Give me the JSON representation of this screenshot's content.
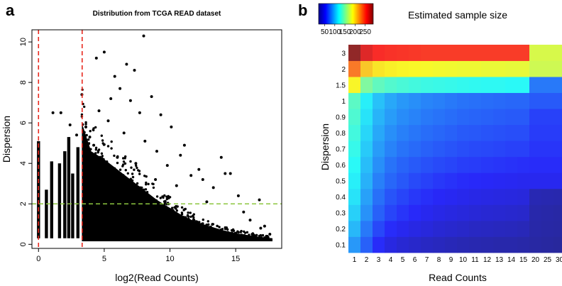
{
  "chart_data": [
    {
      "panel": "a",
      "type": "scatter",
      "title": "Distribution from TCGA READ dataset",
      "xlabel": "log2(Read Counts)",
      "ylabel": "Dispersion",
      "xlim": [
        -0.5,
        18.5
      ],
      "ylim": [
        -0.2,
        10.6
      ],
      "xticks": [
        0,
        5,
        10,
        15
      ],
      "yticks": [
        0,
        2,
        4,
        6,
        8,
        10
      ],
      "vlines": [
        {
          "x": 0,
          "color": "#e8281e",
          "style": "dashed"
        },
        {
          "x": 3.32,
          "color": "#e8281e",
          "style": "dashed"
        }
      ],
      "hlines": [
        {
          "y": 2,
          "color": "#8cc63f",
          "style": "dashed"
        }
      ],
      "point_color": "#000000",
      "points": [
        [
          8.0,
          10.3
        ],
        [
          6.7,
          8.9
        ],
        [
          7.3,
          8.6
        ],
        [
          5.8,
          8.3
        ],
        [
          5.0,
          9.5
        ],
        [
          4.4,
          9.2
        ],
        [
          6.2,
          7.7
        ],
        [
          3.3,
          7.4
        ],
        [
          5.5,
          7.2
        ],
        [
          7.0,
          7.1
        ],
        [
          8.6,
          7.3
        ],
        [
          9.3,
          6.4
        ],
        [
          4.6,
          6.6
        ],
        [
          7.7,
          6.5
        ],
        [
          10.1,
          5.8
        ],
        [
          11.1,
          4.9
        ],
        [
          8.1,
          5.1
        ],
        [
          10.8,
          4.4
        ],
        [
          13.9,
          4.3
        ],
        [
          12.2,
          3.7
        ],
        [
          14.2,
          3.5
        ],
        [
          14.6,
          3.5
        ],
        [
          12.5,
          3.2
        ],
        [
          16.8,
          2.2
        ],
        [
          1.7,
          6.5
        ],
        [
          1.1,
          6.5
        ],
        [
          2.4,
          5.9
        ],
        [
          2.9,
          5.4
        ],
        [
          3.6,
          5.8
        ],
        [
          5.3,
          6.1
        ],
        [
          6.5,
          5.5
        ],
        [
          9.0,
          4.6
        ],
        [
          9.8,
          3.9
        ],
        [
          11.6,
          3.4
        ],
        [
          13.3,
          2.8
        ],
        [
          15.2,
          2.4
        ],
        [
          15.6,
          1.6
        ],
        [
          16.1,
          1.2
        ],
        [
          17.2,
          0.9
        ],
        [
          17.6,
          0.5
        ],
        [
          16.9,
          0.8
        ],
        [
          12.8,
          2.1
        ],
        [
          10.5,
          2.9
        ],
        [
          8.9,
          3.2
        ],
        [
          7.4,
          4.0
        ],
        [
          6.0,
          4.3
        ],
        [
          4.2,
          4.9
        ],
        [
          3.9,
          5.3
        ]
      ],
      "series_columns": [
        {
          "x": 0.0,
          "ymin": 0.3,
          "ymax": 5.1
        },
        {
          "x": 0.6,
          "ymin": 0.3,
          "ymax": 2.7
        },
        {
          "x": 1.0,
          "ymin": 0.3,
          "ymax": 4.1
        },
        {
          "x": 1.6,
          "ymin": 0.3,
          "ymax": 4.0
        },
        {
          "x": 2.0,
          "ymin": 0.3,
          "ymax": 4.6
        },
        {
          "x": 2.3,
          "ymin": 0.3,
          "ymax": 5.3
        },
        {
          "x": 2.6,
          "ymin": 0.3,
          "ymax": 3.5
        },
        {
          "x": 3.0,
          "ymin": 0.3,
          "ymax": 4.8
        }
      ],
      "density_envelope": [
        [
          3.3,
          6.0
        ],
        [
          4.0,
          4.6
        ],
        [
          5.0,
          4.2
        ],
        [
          6.0,
          3.7
        ],
        [
          7.0,
          3.2
        ],
        [
          8.0,
          2.7
        ],
        [
          9.0,
          2.2
        ],
        [
          10.0,
          1.8
        ],
        [
          11.0,
          1.4
        ],
        [
          12.0,
          1.1
        ],
        [
          13.0,
          0.9
        ],
        [
          14.0,
          0.7
        ],
        [
          15.0,
          0.55
        ],
        [
          16.0,
          0.45
        ],
        [
          17.0,
          0.35
        ],
        [
          17.8,
          0.3
        ]
      ],
      "density_floor": 0.15
    },
    {
      "panel": "b",
      "type": "heatmap",
      "title": "Estimated sample size",
      "xlabel": "Read Counts",
      "ylabel": "Dispersion",
      "x_categories": [
        "1",
        "2",
        "3",
        "4",
        "5",
        "6",
        "7",
        "8",
        "9",
        "10",
        "11",
        "12",
        "13",
        "14",
        "15",
        "20",
        "25",
        "30"
      ],
      "y_categories": [
        "0.1",
        "0.2",
        "0.3",
        "0.4",
        "0.5",
        "0.6",
        "0.7",
        "0.8",
        "0.9",
        "1",
        "1.5",
        "2",
        "3"
      ],
      "colorbar": {
        "ticks": [
          50,
          100,
          150,
          200,
          250
        ],
        "range": [
          20,
          290
        ]
      },
      "values": [
        [
          90,
          72,
          55,
          45,
          40,
          37,
          34,
          32,
          30,
          28,
          27,
          26,
          25,
          25,
          24,
          22,
          21,
          20
        ],
        [
          100,
          80,
          64,
          55,
          50,
          46,
          43,
          40,
          38,
          36,
          34,
          33,
          32,
          31,
          30,
          24,
          23,
          22
        ],
        [
          108,
          88,
          72,
          63,
          58,
          54,
          50,
          47,
          45,
          43,
          41,
          40,
          39,
          38,
          37,
          25,
          24,
          23
        ],
        [
          114,
          93,
          77,
          68,
          63,
          59,
          56,
          53,
          51,
          49,
          47,
          46,
          45,
          44,
          43,
          28,
          27,
          26
        ],
        [
          118,
          98,
          82,
          74,
          69,
          65,
          62,
          59,
          57,
          55,
          54,
          53,
          52,
          51,
          50,
          50,
          50,
          50
        ],
        [
          122,
          102,
          87,
          78,
          73,
          70,
          67,
          65,
          63,
          61,
          60,
          59,
          58,
          57,
          56,
          55,
          55,
          55
        ],
        [
          126,
          106,
          91,
          83,
          78,
          75,
          72,
          70,
          68,
          66,
          65,
          64,
          63,
          62,
          62,
          58,
          58,
          58
        ],
        [
          130,
          110,
          95,
          87,
          82,
          79,
          76,
          74,
          72,
          70,
          69,
          68,
          67,
          66,
          66,
          60,
          60,
          60
        ],
        [
          134,
          114,
          99,
          91,
          86,
          83,
          80,
          78,
          76,
          74,
          73,
          72,
          71,
          70,
          70,
          62,
          62,
          62
        ],
        [
          138,
          118,
          103,
          95,
          90,
          87,
          84,
          82,
          80,
          78,
          77,
          76,
          75,
          74,
          74,
          70,
          70,
          70
        ],
        [
          190,
          150,
          140,
          135,
          132,
          130,
          128,
          127,
          126,
          125,
          124,
          123,
          123,
          122,
          122,
          80,
          80,
          80
        ],
        [
          230,
          205,
          195,
          192,
          190,
          189,
          188,
          187,
          186,
          185,
          185,
          184,
          184,
          183,
          183,
          175,
          175,
          175
        ],
        [
          290,
          265,
          255,
          253,
          252,
          251,
          250,
          250,
          250,
          250,
          250,
          250,
          250,
          250,
          250,
          178,
          178,
          178
        ]
      ]
    }
  ],
  "panels": {
    "a_letter": "a",
    "b_letter": "b"
  }
}
